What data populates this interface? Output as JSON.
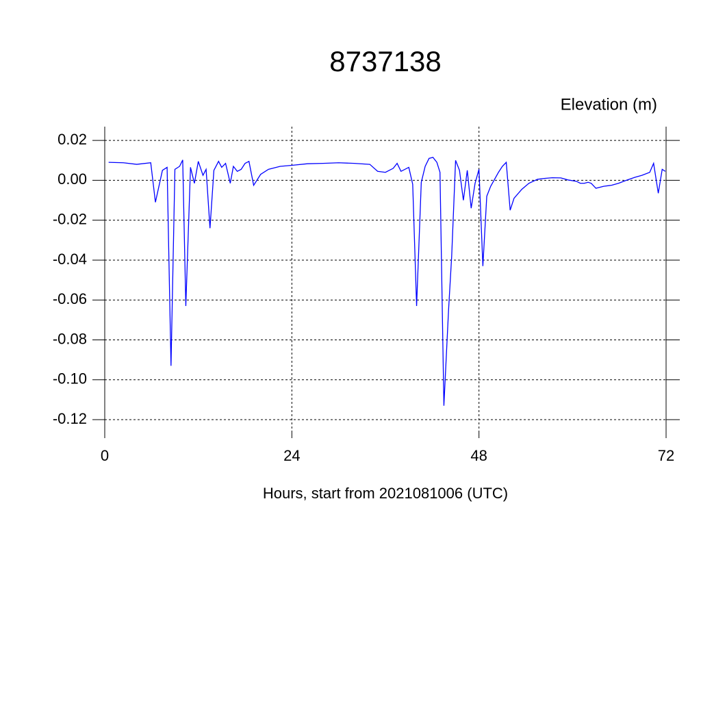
{
  "chart_data": {
    "type": "line",
    "title": "8737138",
    "subtitle": "Elevation (m)",
    "x_label": "Hours, start from 2021081006 (UTC)",
    "x": [
      0.5,
      2.4,
      4.1,
      5.9,
      6.5,
      7.4,
      8.0,
      8.5,
      9.0,
      9.6,
      10.0,
      10.4,
      11.0,
      11.5,
      12.0,
      12.6,
      13.0,
      13.5,
      14.0,
      14.6,
      15.0,
      15.5,
      16.1,
      16.5,
      17.0,
      17.5,
      18.0,
      18.5,
      19.1,
      20.0,
      21.0,
      22.5,
      24.0,
      26.0,
      28.0,
      30.0,
      32.0,
      34.0,
      35.0,
      36.0,
      37.0,
      37.5,
      38.0,
      39.0,
      39.5,
      40.0,
      40.6,
      41.1,
      41.6,
      42.1,
      42.6,
      43.0,
      43.5,
      44.1,
      44.5,
      45.0,
      45.5,
      46.0,
      46.5,
      47.0,
      47.5,
      48.0,
      48.5,
      49.0,
      49.5,
      50.5,
      51.0,
      51.5,
      52.0,
      52.5,
      53.5,
      54.4,
      55.5,
      56.5,
      57.4,
      58.5,
      59.4,
      60.5,
      61.0,
      61.5,
      62.0,
      62.4,
      63.0,
      64.0,
      65.0,
      65.9,
      66.9,
      68.0,
      68.9,
      69.9,
      70.4,
      71.0,
      71.5,
      71.9
    ],
    "series": [
      {
        "name": "Elevation",
        "color": "#0000ff",
        "values": [
          0.009,
          0.0088,
          0.008,
          0.0088,
          -0.011,
          0.005,
          0.0065,
          -0.093,
          0.0055,
          0.007,
          0.0102,
          -0.063,
          0.0065,
          -0.0015,
          0.0095,
          0.0025,
          0.0055,
          -0.024,
          0.005,
          0.0095,
          0.0065,
          0.0085,
          -0.0015,
          0.007,
          0.0045,
          0.0055,
          0.0085,
          0.0095,
          -0.0025,
          0.003,
          0.0055,
          0.007,
          0.0075,
          0.0083,
          0.0085,
          0.0088,
          0.0085,
          0.008,
          0.0045,
          0.004,
          0.006,
          0.0085,
          0.0045,
          0.0065,
          -0.002,
          -0.063,
          -0.001,
          0.007,
          0.011,
          0.0115,
          0.009,
          0.004,
          -0.113,
          -0.065,
          -0.038,
          0.01,
          0.005,
          -0.01,
          0.005,
          -0.014,
          -0.0015,
          0.0055,
          -0.043,
          -0.008,
          -0.003,
          0.004,
          0.007,
          0.009,
          -0.015,
          -0.009,
          -0.0045,
          -0.0015,
          0.0005,
          0.001,
          0.0013,
          0.0012,
          0.0002,
          -0.0005,
          -0.0015,
          -0.0015,
          -0.001,
          -0.0015,
          -0.004,
          -0.003,
          -0.0025,
          -0.0015,
          0,
          0.0015,
          0.0025,
          0.004,
          0.0085,
          -0.0065,
          0.0055,
          0.0045
        ]
      }
    ],
    "xlim": [
      0,
      72
    ],
    "xticks": [
      0,
      24,
      48,
      72
    ],
    "ylim": [
      -0.1265,
      0.0269
    ],
    "yticks": [
      0.02,
      {
        "value": 0,
        "label": "0.00"
      },
      -0.02,
      -0.04,
      -0.06,
      -0.08,
      {
        "value": -0.1,
        "label": "-0.10"
      },
      -0.12
    ],
    "grid": true
  }
}
